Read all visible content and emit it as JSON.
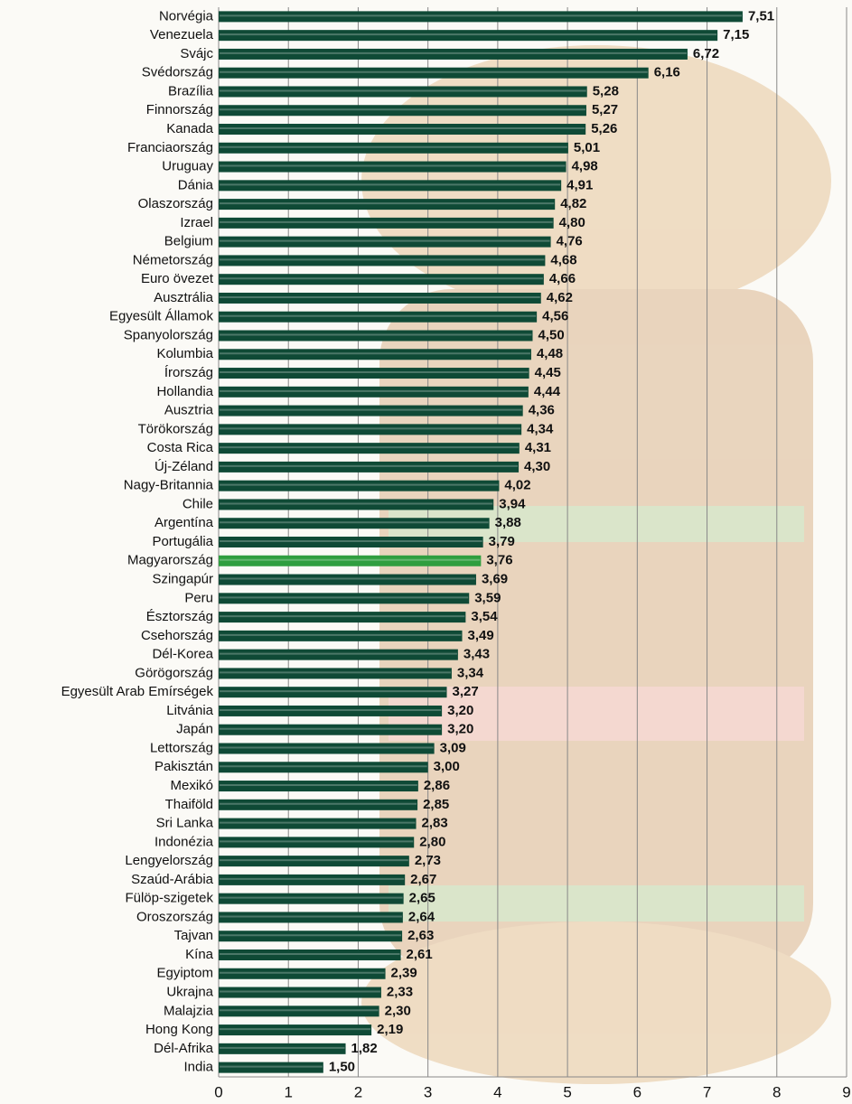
{
  "chart_data": {
    "type": "bar",
    "orientation": "horizontal",
    "categories": [
      "Norvégia",
      "Venezuela",
      "Svájc",
      "Svédország",
      "Brazília",
      "Finnország",
      "Kanada",
      "Franciaország",
      "Uruguay",
      "Dánia",
      "Olaszország",
      "Izrael",
      "Belgium",
      "Németország",
      "Euro övezet",
      "Ausztrália",
      "Egyesült Államok",
      "Spanyolország",
      "Kolumbia",
      "Írország",
      "Hollandia",
      "Ausztria",
      "Törökország",
      "Costa Rica",
      "Új-Zéland",
      "Nagy-Britannia",
      "Chile",
      "Argentína",
      "Portugália",
      "Magyarország",
      "Szingapúr",
      "Peru",
      "Észtország",
      "Csehország",
      "Dél-Korea",
      "Görögország",
      "Egyesült Arab Emírségek",
      "Litvánia",
      "Japán",
      "Lettország",
      "Pakisztán",
      "Mexikó",
      "Thaiföld",
      "Sri Lanka",
      "Indonézia",
      "Lengyelország",
      "Szaúd-Arábia",
      "Fülöp-szigetek",
      "Oroszország",
      "Tajvan",
      "Kína",
      "Egyiptom",
      "Ukrajna",
      "Malajzia",
      "Hong Kong",
      "Dél-Afrika",
      "India"
    ],
    "values": [
      7.51,
      7.15,
      6.72,
      6.16,
      5.28,
      5.27,
      5.26,
      5.01,
      4.98,
      4.91,
      4.82,
      4.8,
      4.76,
      4.68,
      4.66,
      4.62,
      4.56,
      4.5,
      4.48,
      4.45,
      4.44,
      4.36,
      4.34,
      4.31,
      4.3,
      4.02,
      3.94,
      3.88,
      3.79,
      3.76,
      3.69,
      3.59,
      3.54,
      3.49,
      3.43,
      3.34,
      3.27,
      3.2,
      3.2,
      3.09,
      3.0,
      2.86,
      2.85,
      2.83,
      2.8,
      2.73,
      2.67,
      2.65,
      2.64,
      2.63,
      2.61,
      2.39,
      2.33,
      2.3,
      2.19,
      1.82,
      1.5
    ],
    "value_labels": [
      "7,51",
      "7,15",
      "6,72",
      "6,16",
      "5,28",
      "5,27",
      "5,26",
      "5,01",
      "4,98",
      "4,91",
      "4,82",
      "4,80",
      "4,76",
      "4,68",
      "4,66",
      "4,62",
      "4,56",
      "4,50",
      "4,48",
      "4,45",
      "4,44",
      "4,36",
      "4,34",
      "4,31",
      "4,30",
      "4,02",
      "3,94",
      "3,88",
      "3,79",
      "3,76",
      "3,69",
      "3,59",
      "3,54",
      "3,49",
      "3,43",
      "3,34",
      "3,27",
      "3,20",
      "3,20",
      "3,09",
      "3,00",
      "2,86",
      "2,85",
      "2,83",
      "2,80",
      "2,73",
      "2,67",
      "2,65",
      "2,64",
      "2,63",
      "2,61",
      "2,39",
      "2,33",
      "2,30",
      "2,19",
      "1,82",
      "1,50"
    ],
    "colors": [
      "#0f4a36",
      "#0f4a36",
      "#0f4a36",
      "#0f4a36",
      "#0f4a36",
      "#0f4a36",
      "#0f4a36",
      "#0f4a36",
      "#0f4a36",
      "#0f4a36",
      "#0f4a36",
      "#0f4a36",
      "#0f4a36",
      "#0f4a36",
      "#0f4a36",
      "#0f4a36",
      "#0f4a36",
      "#0f4a36",
      "#0f4a36",
      "#0f4a36",
      "#0f4a36",
      "#0f4a36",
      "#0f4a36",
      "#0f4a36",
      "#0f4a36",
      "#0f4a36",
      "#0f4a36",
      "#0f4a36",
      "#0f4a36",
      "#2f9e3f",
      "#0f4a36",
      "#0f4a36",
      "#0f4a36",
      "#0f4a36",
      "#0f4a36",
      "#0f4a36",
      "#0f4a36",
      "#0f4a36",
      "#0f4a36",
      "#0f4a36",
      "#0f4a36",
      "#0f4a36",
      "#0f4a36",
      "#0f4a36",
      "#0f4a36",
      "#0f4a36",
      "#0f4a36",
      "#0f4a36",
      "#0f4a36",
      "#0f4a36",
      "#0f4a36",
      "#0f4a36",
      "#0f4a36",
      "#0f4a36",
      "#0f4a36",
      "#0f4a36",
      "#0f4a36"
    ],
    "xlim": [
      0,
      9
    ],
    "xticks": [
      0,
      1,
      2,
      3,
      4,
      5,
      6,
      7,
      8,
      9
    ],
    "grid": true
  }
}
